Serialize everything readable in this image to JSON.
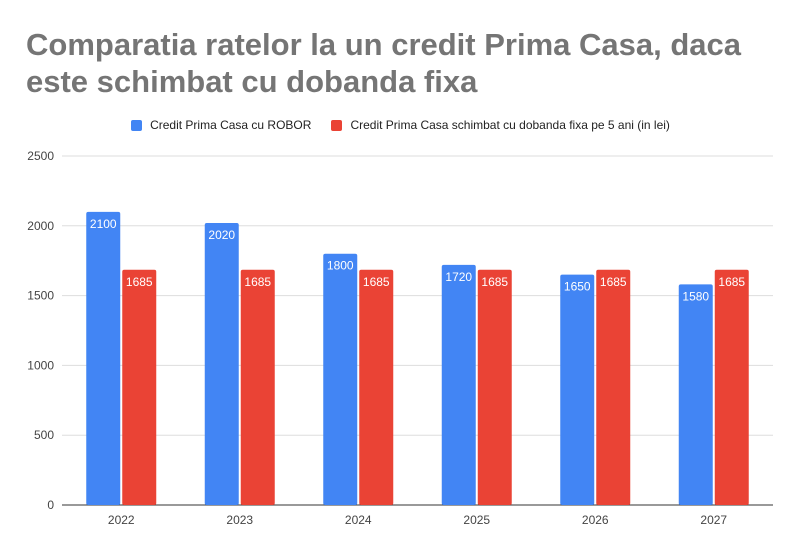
{
  "chart_data": {
    "type": "bar",
    "title": "Comparatia ratelor la un credit Prima Casa, daca este schimbat cu dobanda fixa",
    "categories": [
      "2022",
      "2023",
      "2024",
      "2025",
      "2026",
      "2027"
    ],
    "series": [
      {
        "name": "Credit Prima Casa cu ROBOR",
        "color": "#4285f4",
        "values": [
          2100,
          2020,
          1800,
          1720,
          1650,
          1580
        ]
      },
      {
        "name": "Credit Prima Casa schimbat cu dobanda fixa pe 5 ani (in lei)",
        "color": "#ea4335",
        "values": [
          1685,
          1685,
          1685,
          1685,
          1685,
          1685
        ]
      }
    ],
    "ylim": [
      0,
      2500
    ],
    "yticks": [
      0,
      500,
      1000,
      1500,
      2000,
      2500
    ],
    "grid": true,
    "legend_position": "top",
    "data_labels": true
  }
}
